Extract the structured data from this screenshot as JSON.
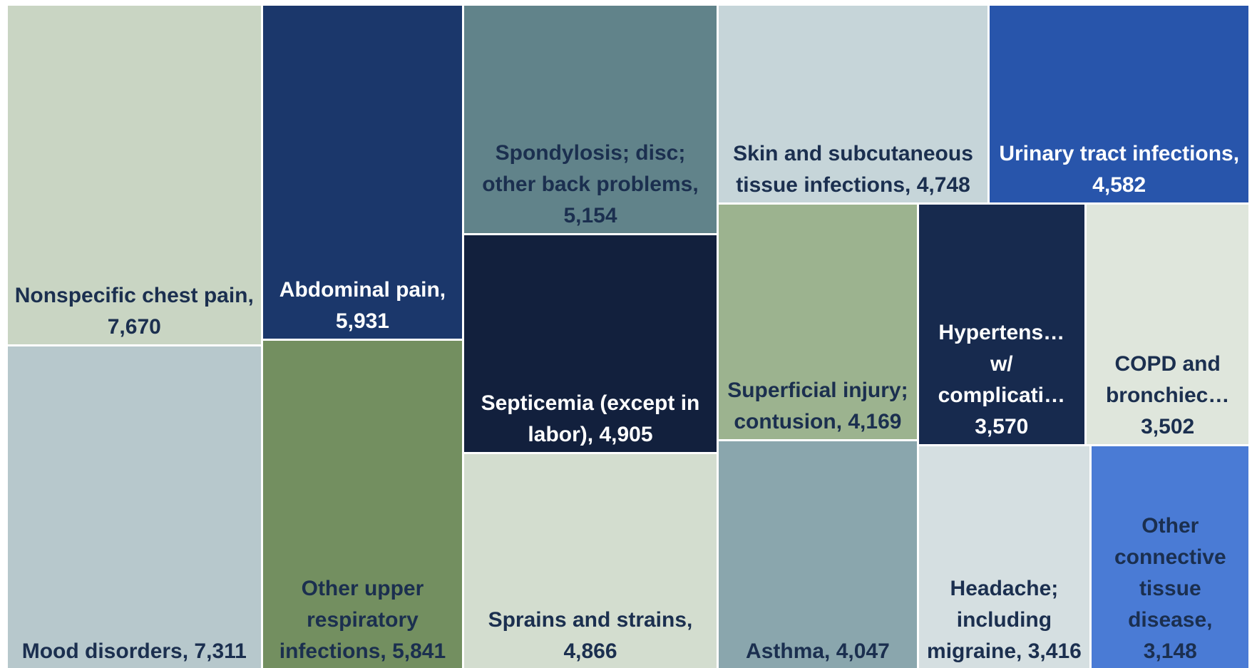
{
  "chart_data": {
    "type": "treemap",
    "categories": [
      "Nonspecific chest pain,",
      "Mood disorders,",
      "Abdominal pain,",
      "Other upper respiratory infections,",
      "Spondylosis; disc; other back problems,",
      "Septicemia (except in labor),",
      "Sprains and strains,",
      "Skin and subcutaneous tissue infections,",
      "Urinary tract infections,",
      "Superficial injury; contusion,",
      "Asthma,",
      "Hypertens… w/ complicati…",
      "COPD and bronchiec…",
      "Headache; including migraine,",
      "Other connective tissue disease,"
    ],
    "values": [
      7670,
      7311,
      5931,
      5841,
      5154,
      4905,
      4866,
      4748,
      4582,
      4169,
      4047,
      3570,
      3502,
      3416,
      3148
    ],
    "value_labels": [
      "7,670",
      "7,311",
      "5,931",
      "5,841",
      "5,154",
      "4,905",
      "4,866",
      "4,748",
      "4,582",
      "4,169",
      "4,047",
      "3,570",
      "3,502",
      "3,416",
      "3,148"
    ],
    "colors": [
      "#c9d5c3",
      "#b7c8cc",
      "#1b376b",
      "#738f60",
      "#61838a",
      "#12203d",
      "#d3ddcf",
      "#c6d5d9",
      "#2855ab",
      "#9cb38f",
      "#8aa6ad",
      "#172a4e",
      "#dfe6dc",
      "#d5dfe1",
      "#4a7bd5"
    ]
  }
}
